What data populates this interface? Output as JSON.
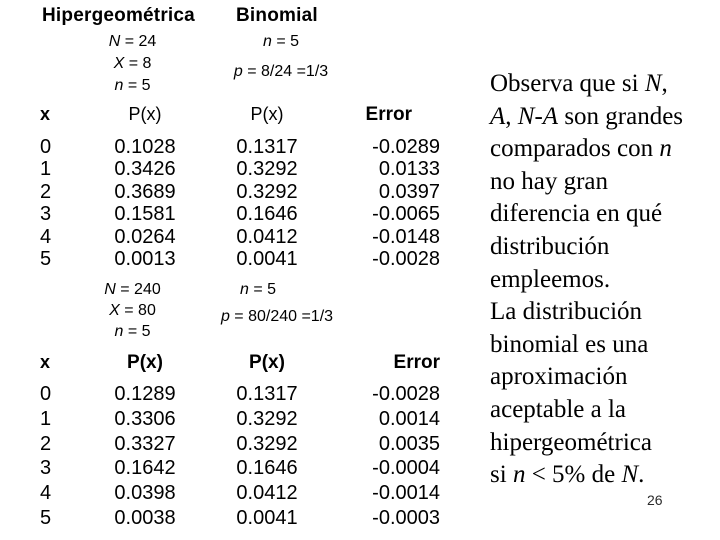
{
  "headings": {
    "left": "Hipergeométrica",
    "right": "Binomial"
  },
  "page_number": "26",
  "example1": {
    "hyper_params": [
      [
        {
          "t": "N",
          "i": 1
        },
        {
          "t": " = 24",
          "i": 0
        }
      ],
      [
        {
          "t": "X",
          "i": 1
        },
        {
          "t": " = 8",
          "i": 0
        }
      ],
      [
        {
          "t": "n",
          "i": 1
        },
        {
          "t": " = 5",
          "i": 0
        }
      ]
    ],
    "binom_params": [
      [
        {
          "t": "n",
          "i": 1
        },
        {
          "t": " = 5",
          "i": 0
        }
      ],
      [
        {
          "t": "p",
          "i": 1
        },
        {
          "t": " = 8/24 =1/3",
          "i": 0
        }
      ]
    ],
    "table": {
      "headers": {
        "x": "x",
        "hyper": "P(x)",
        "binom": "P(x)",
        "error": "Error"
      },
      "rows": [
        {
          "x": "0",
          "hyper": "0.1028",
          "binom": "0.1317",
          "error": "-0.0289"
        },
        {
          "x": "1",
          "hyper": "0.3426",
          "binom": "0.3292",
          "error": "0.0133"
        },
        {
          "x": "2",
          "hyper": "0.3689",
          "binom": "0.3292",
          "error": "0.0397"
        },
        {
          "x": "3",
          "hyper": "0.1581",
          "binom": "0.1646",
          "error": "-0.0065"
        },
        {
          "x": "4",
          "hyper": "0.0264",
          "binom": "0.0412",
          "error": "-0.0148"
        },
        {
          "x": "5",
          "hyper": "0.0013",
          "binom": "0.0041",
          "error": "-0.0028"
        }
      ]
    }
  },
  "example2": {
    "hyper_params": [
      [
        {
          "t": "N",
          "i": 1
        },
        {
          "t": " = 240",
          "i": 0
        }
      ],
      [
        {
          "t": "X",
          "i": 1
        },
        {
          "t": " = 80",
          "i": 0
        }
      ],
      [
        {
          "t": "n",
          "i": 1
        },
        {
          "t": " = 5",
          "i": 0
        }
      ]
    ],
    "binom_params": [
      [
        {
          "t": "n",
          "i": 1
        },
        {
          "t": " = 5",
          "i": 0
        }
      ],
      [
        {
          "t": "p",
          "i": 1
        },
        {
          "t": " = 80/240 =1/3",
          "i": 0
        }
      ]
    ],
    "table": {
      "headers": {
        "x": "x",
        "hyper": "P(x)",
        "binom": "P(x)",
        "error": "Error"
      },
      "rows": [
        {
          "x": "0",
          "hyper": "0.1289",
          "binom": "0.1317",
          "error": "-0.0028"
        },
        {
          "x": "1",
          "hyper": "0.3306",
          "binom": "0.3292",
          "error": "0.0014"
        },
        {
          "x": "2",
          "hyper": "0.3327",
          "binom": "0.3292",
          "error": "0.0035"
        },
        {
          "x": "3",
          "hyper": "0.1642",
          "binom": "0.1646",
          "error": "-0.0004"
        },
        {
          "x": "4",
          "hyper": "0.0398",
          "binom": "0.0412",
          "error": "-0.0014"
        },
        {
          "x": "5",
          "hyper": "0.0038",
          "binom": "0.0041",
          "error": "-0.0003"
        }
      ]
    }
  },
  "note": {
    "lines": [
      [
        {
          "t": "Observa que si ",
          "i": 0
        },
        {
          "t": "N",
          "i": 1
        },
        {
          "t": ",",
          "i": 0
        }
      ],
      [
        {
          "t": "A",
          "i": 1
        },
        {
          "t": ", ",
          "i": 0
        },
        {
          "t": "N-A",
          "i": 1
        },
        {
          "t": " son grandes",
          "i": 0
        }
      ],
      [
        {
          "t": "comparados con ",
          "i": 0
        },
        {
          "t": "n",
          "i": 1
        }
      ],
      [
        {
          "t": "no hay gran",
          "i": 0
        }
      ],
      [
        {
          "t": "diferencia en qué",
          "i": 0
        }
      ],
      [
        {
          "t": "distribución",
          "i": 0
        }
      ],
      [
        {
          "t": "empleemos.",
          "i": 0
        }
      ],
      [
        {
          "t": "La distribución",
          "i": 0
        }
      ],
      [
        {
          "t": "binomial es una",
          "i": 0
        }
      ],
      [
        {
          "t": "aproximación",
          "i": 0
        }
      ],
      [
        {
          "t": "aceptable a la",
          "i": 0
        }
      ],
      [
        {
          "t": "hipergeométrica",
          "i": 0
        }
      ],
      [
        {
          "t": "si ",
          "i": 0
        },
        {
          "t": "n",
          "i": 1
        },
        {
          "t": " < 5% de ",
          "i": 0
        },
        {
          "t": "N",
          "i": 1
        },
        {
          "t": ".",
          "i": 0
        }
      ]
    ]
  }
}
